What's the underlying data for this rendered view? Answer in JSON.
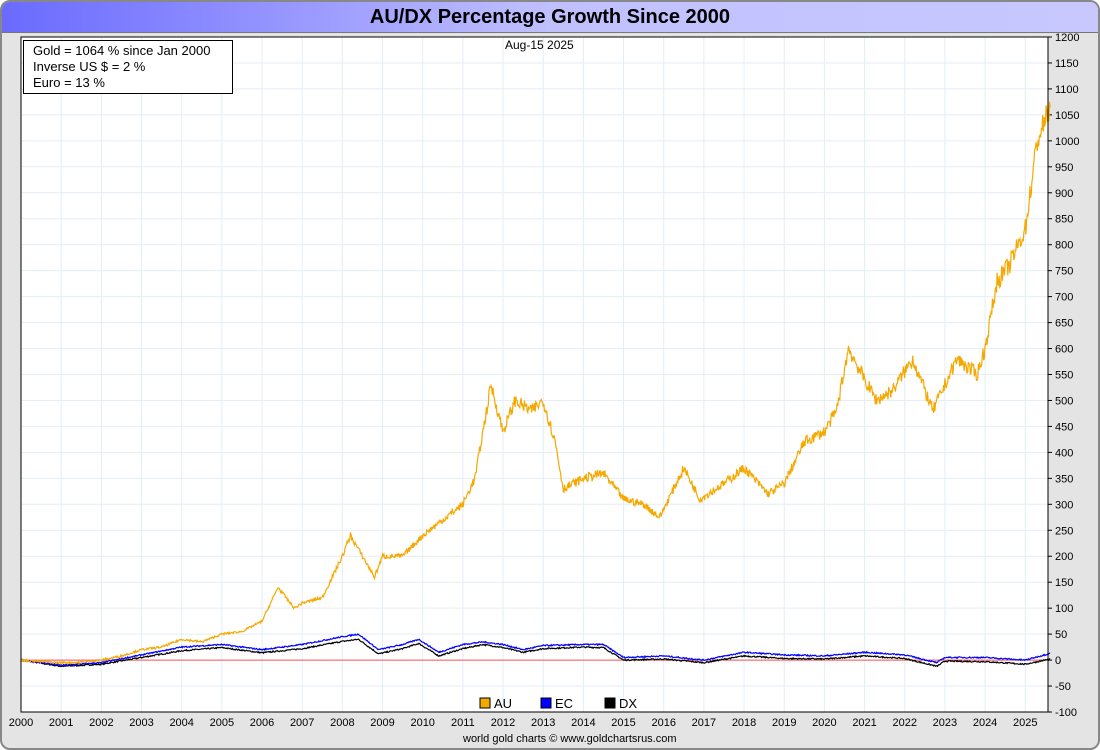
{
  "title": "AU/DX Percentage Growth Since 2000",
  "date": "Aug-15  2025",
  "info": [
    "Gold = 1064 % since Jan 2000",
    "Inverse US $ = 2 %",
    "Euro = 13 %"
  ],
  "credit": "world gold charts © www.goldchartsrus.com",
  "chart_data": {
    "type": "line",
    "title": "AU/DX Percentage Growth Since 2000",
    "xlim": [
      2000,
      2025.62
    ],
    "ylim": [
      -100,
      1200
    ],
    "yticks": [
      -100,
      -50,
      0,
      50,
      100,
      150,
      200,
      250,
      300,
      350,
      400,
      450,
      500,
      550,
      600,
      650,
      700,
      750,
      800,
      850,
      900,
      950,
      1000,
      1050,
      1100,
      1150,
      1200
    ],
    "xticks": [
      2000,
      2001,
      2002,
      2003,
      2004,
      2005,
      2006,
      2007,
      2008,
      2009,
      2010,
      2011,
      2012,
      2013,
      2014,
      2015,
      2016,
      2017,
      2018,
      2019,
      2020,
      2021,
      2022,
      2023,
      2024,
      2025
    ],
    "grid": true,
    "legend": "bottom-center",
    "series": [
      {
        "name": "AU",
        "color": "#f5a800",
        "x": [
          2000,
          2000.5,
          2001,
          2001.5,
          2002,
          2002.5,
          2003,
          2003.5,
          2004,
          2004.5,
          2005,
          2005.5,
          2006,
          2006.4,
          2006.8,
          2007,
          2007.5,
          2008,
          2008.2,
          2008.8,
          2009,
          2009.5,
          2010,
          2010.5,
          2011,
          2011.3,
          2011.7,
          2012,
          2012.3,
          2012.7,
          2013,
          2013.3,
          2013.5,
          2014,
          2014.5,
          2015,
          2015.5,
          2015.9,
          2016.5,
          2016.9,
          2017.5,
          2018,
          2018.6,
          2019,
          2019.5,
          2020,
          2020.3,
          2020.6,
          2021,
          2021.3,
          2021.7,
          2022.2,
          2022.7,
          2023,
          2023.3,
          2023.8,
          2024,
          2024.3,
          2024.6,
          2025,
          2025.3,
          2025.62
        ],
        "values": [
          0,
          -3,
          -5,
          -4,
          0,
          8,
          20,
          25,
          40,
          35,
          50,
          55,
          75,
          140,
          100,
          110,
          120,
          200,
          240,
          160,
          200,
          200,
          240,
          270,
          300,
          350,
          530,
          440,
          500,
          480,
          500,
          420,
          330,
          350,
          360,
          310,
          300,
          275,
          370,
          310,
          340,
          370,
          320,
          340,
          420,
          440,
          480,
          600,
          540,
          500,
          520,
          580,
          480,
          530,
          580,
          550,
          600,
          730,
          760,
          830,
          1000,
          1064
        ]
      },
      {
        "name": "EC",
        "color": "#0000ff",
        "x": [
          2000,
          2001,
          2002,
          2003,
          2004,
          2005,
          2006,
          2007,
          2008,
          2008.4,
          2008.9,
          2009.5,
          2009.9,
          2010.4,
          2011,
          2011.5,
          2012,
          2012.5,
          2013,
          2014,
          2014.5,
          2015,
          2016,
          2017,
          2018,
          2019,
          2020,
          2021,
          2022,
          2022.8,
          2023,
          2024,
          2025,
          2025.62
        ],
        "values": [
          0,
          -10,
          -5,
          10,
          25,
          30,
          20,
          30,
          45,
          50,
          20,
          30,
          40,
          15,
          30,
          35,
          30,
          20,
          28,
          30,
          30,
          5,
          8,
          0,
          15,
          10,
          8,
          15,
          10,
          -5,
          5,
          5,
          0,
          13
        ]
      },
      {
        "name": "DX",
        "color": "#000000",
        "x": [
          2000,
          2001,
          2002,
          2003,
          2004,
          2005,
          2006,
          2007,
          2008,
          2008.4,
          2008.9,
          2009.5,
          2009.9,
          2010.4,
          2011,
          2011.5,
          2012,
          2012.5,
          2013,
          2014,
          2014.5,
          2015,
          2016,
          2017,
          2018,
          2019,
          2020,
          2021,
          2022,
          2022.8,
          2023,
          2024,
          2025,
          2025.62
        ],
        "values": [
          0,
          -12,
          -8,
          5,
          18,
          24,
          14,
          22,
          36,
          40,
          12,
          22,
          32,
          8,
          22,
          30,
          24,
          15,
          22,
          25,
          24,
          0,
          2,
          -5,
          8,
          3,
          2,
          8,
          3,
          -12,
          -2,
          -3,
          -8,
          2
        ]
      }
    ]
  }
}
